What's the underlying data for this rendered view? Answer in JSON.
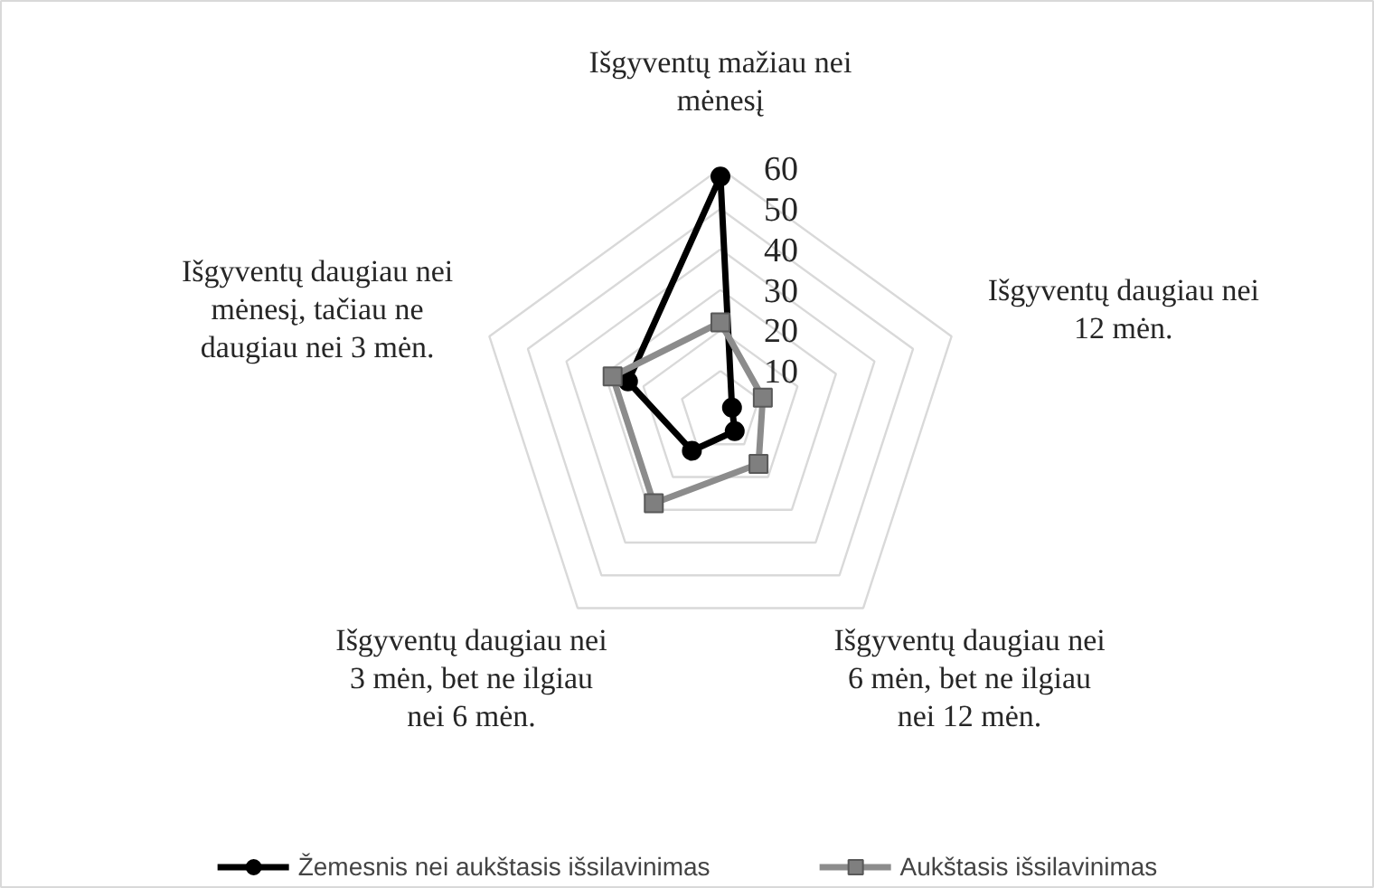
{
  "chart_data": {
    "type": "radar",
    "categories": [
      "Išgyventų mažiau nei mėnesį",
      "Išgyventų daugiau nei 12 mėn.",
      "Išgyventų daugiau nei 6 mėn, bet ne ilgiau nei 12 mėn.",
      "Išgyventų daugiau nei 3 mėn, bet ne ilgiau nei 6 mėn.",
      "Išgyventų daugiau nei mėnesį, tačiau ne daugiau nei 3 mėn."
    ],
    "series": [
      {
        "name": "Žemesnis nei aukštasis išsilavinimas",
        "color": "#000000",
        "marker": "circle",
        "values": [
          58,
          3,
          6,
          12,
          24
        ]
      },
      {
        "name": "Aukštasis išsilavinimas",
        "color": "#8c8c8c",
        "marker": "square",
        "values": [
          22,
          11,
          16,
          28,
          28
        ]
      }
    ],
    "ylim": [
      0,
      60
    ],
    "yticks": [
      10,
      20,
      30,
      40,
      50,
      60
    ],
    "grid": true,
    "legend": "bottom"
  }
}
